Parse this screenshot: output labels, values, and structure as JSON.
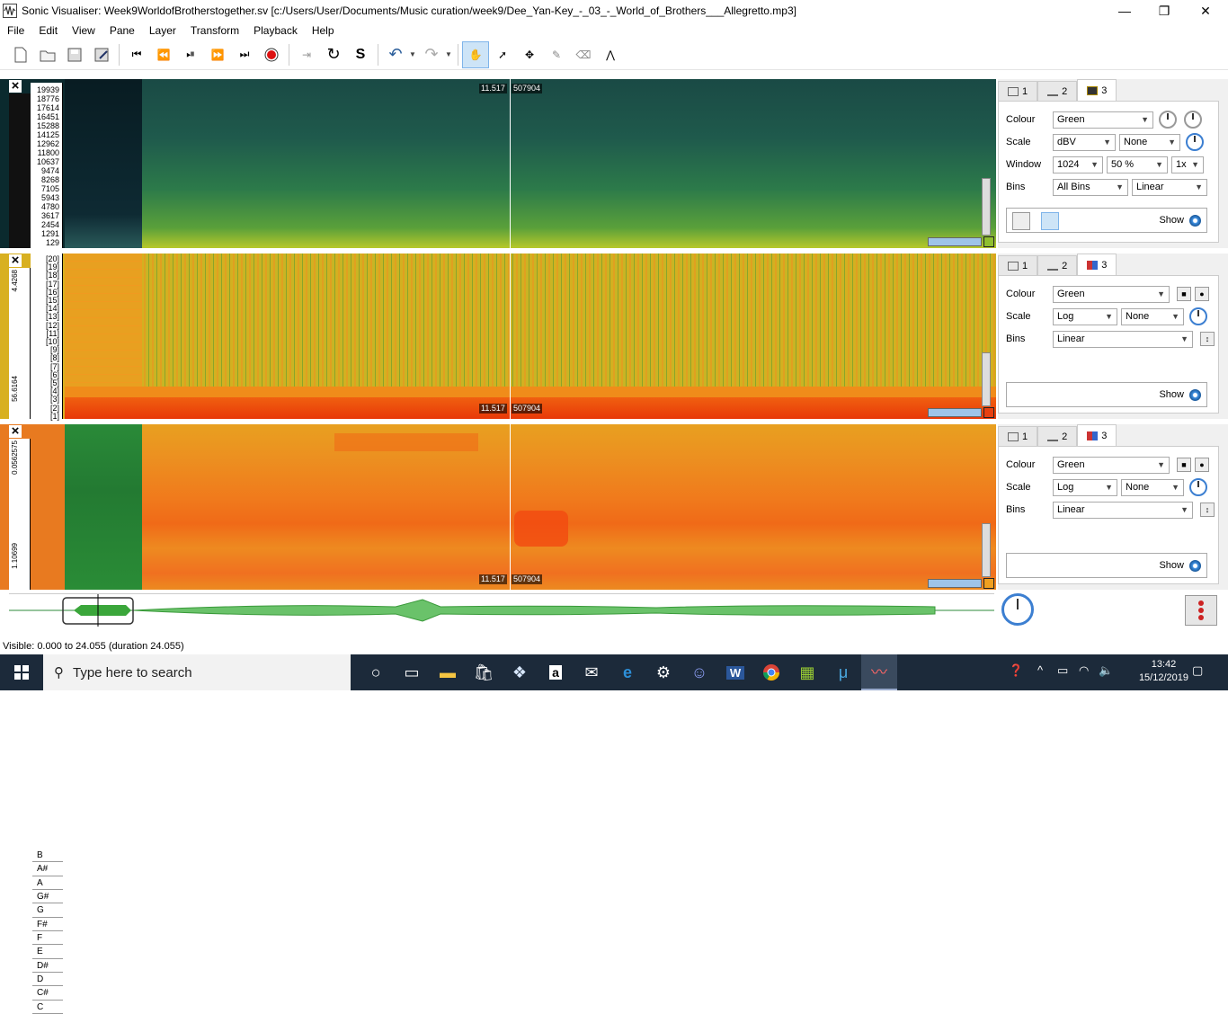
{
  "window": {
    "title": "Sonic Visualiser: Week9WorldofBrotherstogether.sv [c:/Users/User/Documents/Music curation/week9/Dee_Yan-Key_-_03_-_World_of_Brothers___Allegretto.mp3]"
  },
  "menu": [
    "File",
    "Edit",
    "View",
    "Pane",
    "Layer",
    "Transform",
    "Playback",
    "Help"
  ],
  "pane1": {
    "freq_labels": [
      "19939",
      "18776",
      "17614",
      "16451",
      "15288",
      "14125",
      "12962",
      "11800",
      "10637",
      "9474",
      "8268",
      "7105",
      "5943",
      "4780",
      "3617",
      "2454",
      "1291",
      "129"
    ],
    "time": "11.517",
    "frame": "507904"
  },
  "pane2": {
    "bin_labels": [
      "[20]",
      "[19]",
      "[18]",
      "[17]",
      "[16]",
      "[15]",
      "[14]",
      "[13]",
      "[12]",
      "[11]",
      "[10]",
      "[9]",
      "[8]",
      "[7]",
      "[6]",
      "[5]",
      "[4]",
      "[3]",
      "[2]",
      "[1]"
    ],
    "left_top": "4.4268",
    "left_bottom": "56.6164",
    "time": "11.517",
    "frame": "507904"
  },
  "pane3": {
    "notes": [
      "B",
      "A#",
      "A",
      "G#",
      "G",
      "F#",
      "F",
      "E",
      "D#",
      "D",
      "C#",
      "C"
    ],
    "left_top": "0.0562575",
    "left_bottom": "1.10699",
    "time": "11.517",
    "frame": "507904"
  },
  "props1": {
    "tabs": [
      "1",
      "2",
      "3"
    ],
    "colour_label": "Colour",
    "colour": "Green",
    "scale_label": "Scale",
    "scale": "dBV",
    "scale2": "None",
    "window_label": "Window",
    "window": "1024",
    "overlap": "50 %",
    "zoom": "1x",
    "bins_label": "Bins",
    "bins": "All Bins",
    "bins2": "Linear",
    "show": "Show"
  },
  "props2": {
    "tabs": [
      "1",
      "2",
      "3"
    ],
    "colour_label": "Colour",
    "colour": "Green",
    "scale_label": "Scale",
    "scale": "Log",
    "scale2": "None",
    "bins_label": "Bins",
    "bins": "Linear",
    "show": "Show"
  },
  "props3": {
    "tabs": [
      "1",
      "2",
      "3"
    ],
    "colour_label": "Colour",
    "colour": "Green",
    "scale_label": "Scale",
    "scale": "Log",
    "scale2": "None",
    "bins_label": "Bins",
    "bins": "Linear",
    "show": "Show"
  },
  "status": "Visible: 0.000 to 24.055 (duration 24.055)",
  "taskbar": {
    "search_placeholder": "Type here to search",
    "time": "13:42",
    "date": "15/12/2019"
  }
}
